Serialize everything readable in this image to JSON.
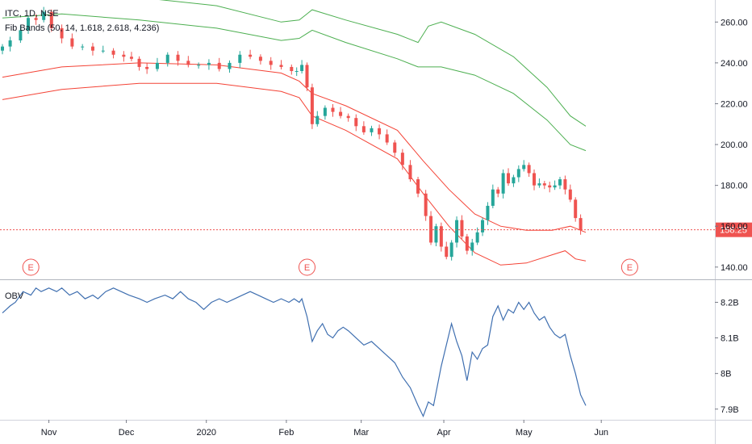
{
  "header": {
    "symbol_line": "ITC, 1D, NSE",
    "indicator_line": "Fib Bands (50, 14, 1.618, 2.618, 4.236)"
  },
  "colors": {
    "up": "#26a69a",
    "down": "#ef5350",
    "upper_band": "#4caf50",
    "lower_band": "#f44336",
    "obv": "#3f6fb0",
    "last_price": "#ef5350"
  },
  "chart_data": [
    {
      "type": "candlestick",
      "title": "ITC, 1D, NSE",
      "x_axis": {
        "tick_labels": [
          "Nov",
          "Dec",
          "2020",
          "Feb",
          "Mar",
          "Apr",
          "May",
          "Jun"
        ],
        "tick_day_index": [
          25,
          55,
          86,
          117,
          146,
          178,
          209,
          239
        ]
      },
      "y_axis": {
        "range": [
          134,
          270
        ],
        "ticks": [
          140,
          160,
          180,
          200,
          220,
          240,
          260
        ],
        "tick_labels": [
          "140.00",
          "160.00",
          "180.00",
          "200.00",
          "220.00",
          "240.00",
          "260.00"
        ]
      },
      "last_price": {
        "value": 158.25,
        "label": "158.25"
      },
      "earnings_markers": {
        "label": "E",
        "day_index": [
          18,
          125,
          250
        ]
      },
      "close_series": [
        {
          "d": 7,
          "c": 248
        },
        {
          "d": 10,
          "c": 251
        },
        {
          "d": 14,
          "c": 256
        },
        {
          "d": 17,
          "c": 262
        },
        {
          "d": 20,
          "c": 261
        },
        {
          "d": 23,
          "c": 265
        },
        {
          "d": 26,
          "c": 257
        },
        {
          "d": 30,
          "c": 252
        },
        {
          "d": 34,
          "c": 248
        },
        {
          "d": 38,
          "c": 248
        },
        {
          "d": 42,
          "c": 246
        },
        {
          "d": 46,
          "c": 246
        },
        {
          "d": 50,
          "c": 244
        },
        {
          "d": 54,
          "c": 243
        },
        {
          "d": 57,
          "c": 242
        },
        {
          "d": 60,
          "c": 238
        },
        {
          "d": 63,
          "c": 237
        },
        {
          "d": 67,
          "c": 240
        },
        {
          "d": 71,
          "c": 244
        },
        {
          "d": 75,
          "c": 241
        },
        {
          "d": 79,
          "c": 239
        },
        {
          "d": 83,
          "c": 239
        },
        {
          "d": 87,
          "c": 240
        },
        {
          "d": 91,
          "c": 237
        },
        {
          "d": 95,
          "c": 240
        },
        {
          "d": 99,
          "c": 244
        },
        {
          "d": 103,
          "c": 243
        },
        {
          "d": 107,
          "c": 241
        },
        {
          "d": 111,
          "c": 239
        },
        {
          "d": 115,
          "c": 238
        },
        {
          "d": 119,
          "c": 236
        },
        {
          "d": 121,
          "c": 236
        },
        {
          "d": 123,
          "c": 239
        },
        {
          "d": 125,
          "c": 228
        },
        {
          "d": 127,
          "c": 210
        },
        {
          "d": 129,
          "c": 214
        },
        {
          "d": 132,
          "c": 218
        },
        {
          "d": 135,
          "c": 216
        },
        {
          "d": 138,
          "c": 214
        },
        {
          "d": 141,
          "c": 213
        },
        {
          "d": 144,
          "c": 209
        },
        {
          "d": 147,
          "c": 206
        },
        {
          "d": 150,
          "c": 208
        },
        {
          "d": 153,
          "c": 205
        },
        {
          "d": 156,
          "c": 201
        },
        {
          "d": 159,
          "c": 196
        },
        {
          "d": 162,
          "c": 190
        },
        {
          "d": 165,
          "c": 183
        },
        {
          "d": 168,
          "c": 176
        },
        {
          "d": 171,
          "c": 165
        },
        {
          "d": 173,
          "c": 152
        },
        {
          "d": 175,
          "c": 160
        },
        {
          "d": 177,
          "c": 150
        },
        {
          "d": 179,
          "c": 145
        },
        {
          "d": 181,
          "c": 152
        },
        {
          "d": 183,
          "c": 163
        },
        {
          "d": 185,
          "c": 155
        },
        {
          "d": 187,
          "c": 148
        },
        {
          "d": 189,
          "c": 152
        },
        {
          "d": 191,
          "c": 157
        },
        {
          "d": 193,
          "c": 163
        },
        {
          "d": 195,
          "c": 170
        },
        {
          "d": 197,
          "c": 178
        },
        {
          "d": 199,
          "c": 176
        },
        {
          "d": 201,
          "c": 186
        },
        {
          "d": 203,
          "c": 181
        },
        {
          "d": 205,
          "c": 184
        },
        {
          "d": 207,
          "c": 188
        },
        {
          "d": 209,
          "c": 190
        },
        {
          "d": 211,
          "c": 186
        },
        {
          "d": 213,
          "c": 180
        },
        {
          "d": 215,
          "c": 181
        },
        {
          "d": 217,
          "c": 180
        },
        {
          "d": 219,
          "c": 179
        },
        {
          "d": 221,
          "c": 180
        },
        {
          "d": 223,
          "c": 183
        },
        {
          "d": 225,
          "c": 178
        },
        {
          "d": 227,
          "c": 173
        },
        {
          "d": 229,
          "c": 164
        },
        {
          "d": 231,
          "c": 158.25
        }
      ],
      "series": [
        {
          "name": "upper-band-2",
          "color": "#4caf50",
          "points": [
            {
              "d": 7,
              "v": 274
            },
            {
              "d": 30,
              "v": 276
            },
            {
              "d": 60,
              "v": 272
            },
            {
              "d": 90,
              "v": 268
            },
            {
              "d": 115,
              "v": 260
            },
            {
              "d": 122,
              "v": 261
            },
            {
              "d": 127,
              "v": 266
            },
            {
              "d": 140,
              "v": 261
            },
            {
              "d": 160,
              "v": 254
            },
            {
              "d": 168,
              "v": 250
            },
            {
              "d": 172,
              "v": 258
            },
            {
              "d": 177,
              "v": 260
            },
            {
              "d": 190,
              "v": 254
            },
            {
              "d": 205,
              "v": 243
            },
            {
              "d": 218,
              "v": 228
            },
            {
              "d": 227,
              "v": 214
            },
            {
              "d": 233,
              "v": 209
            }
          ]
        },
        {
          "name": "upper-band-1",
          "color": "#4caf50",
          "points": [
            {
              "d": 7,
              "v": 262
            },
            {
              "d": 30,
              "v": 264
            },
            {
              "d": 60,
              "v": 261
            },
            {
              "d": 90,
              "v": 257
            },
            {
              "d": 115,
              "v": 251
            },
            {
              "d": 122,
              "v": 252
            },
            {
              "d": 127,
              "v": 256
            },
            {
              "d": 140,
              "v": 250
            },
            {
              "d": 160,
              "v": 242
            },
            {
              "d": 168,
              "v": 238
            },
            {
              "d": 177,
              "v": 238
            },
            {
              "d": 190,
              "v": 234
            },
            {
              "d": 205,
              "v": 225
            },
            {
              "d": 218,
              "v": 212
            },
            {
              "d": 227,
              "v": 200
            },
            {
              "d": 233,
              "v": 197
            }
          ]
        },
        {
          "name": "lower-band-1",
          "color": "#f44336",
          "points": [
            {
              "d": 7,
              "v": 233
            },
            {
              "d": 30,
              "v": 238
            },
            {
              "d": 60,
              "v": 240
            },
            {
              "d": 90,
              "v": 239
            },
            {
              "d": 115,
              "v": 235
            },
            {
              "d": 122,
              "v": 231
            },
            {
              "d": 127,
              "v": 225
            },
            {
              "d": 140,
              "v": 219
            },
            {
              "d": 160,
              "v": 207
            },
            {
              "d": 170,
              "v": 192
            },
            {
              "d": 180,
              "v": 178
            },
            {
              "d": 190,
              "v": 166
            },
            {
              "d": 200,
              "v": 160
            },
            {
              "d": 210,
              "v": 158
            },
            {
              "d": 220,
              "v": 158
            },
            {
              "d": 227,
              "v": 160
            },
            {
              "d": 233,
              "v": 157
            }
          ]
        },
        {
          "name": "lower-band-2",
          "color": "#f44336",
          "points": [
            {
              "d": 7,
              "v": 222
            },
            {
              "d": 30,
              "v": 227
            },
            {
              "d": 60,
              "v": 230
            },
            {
              "d": 90,
              "v": 230
            },
            {
              "d": 115,
              "v": 226
            },
            {
              "d": 122,
              "v": 223
            },
            {
              "d": 127,
              "v": 214
            },
            {
              "d": 140,
              "v": 207
            },
            {
              "d": 160,
              "v": 193
            },
            {
              "d": 170,
              "v": 176
            },
            {
              "d": 180,
              "v": 160
            },
            {
              "d": 190,
              "v": 147
            },
            {
              "d": 200,
              "v": 141
            },
            {
              "d": 210,
              "v": 142
            },
            {
              "d": 220,
              "v": 146
            },
            {
              "d": 225,
              "v": 148
            },
            {
              "d": 229,
              "v": 144
            },
            {
              "d": 233,
              "v": 143
            }
          ]
        }
      ]
    },
    {
      "type": "line",
      "title": "OBV",
      "y_axis": {
        "range": [
          7.87,
          8.26
        ],
        "ticks": [
          7.9,
          8.0,
          8.1,
          8.2
        ],
        "tick_labels": [
          "7.9B",
          "8B",
          "8.1B",
          "8.2B"
        ]
      },
      "series": [
        {
          "name": "OBV",
          "color": "#3f6fb0",
          "points": [
            {
              "d": 7,
              "v": 8.17
            },
            {
              "d": 10,
              "v": 8.19
            },
            {
              "d": 12,
              "v": 8.2
            },
            {
              "d": 15,
              "v": 8.23
            },
            {
              "d": 18,
              "v": 8.22
            },
            {
              "d": 20,
              "v": 8.24
            },
            {
              "d": 22,
              "v": 8.23
            },
            {
              "d": 25,
              "v": 8.24
            },
            {
              "d": 28,
              "v": 8.23
            },
            {
              "d": 30,
              "v": 8.24
            },
            {
              "d": 33,
              "v": 8.22
            },
            {
              "d": 36,
              "v": 8.23
            },
            {
              "d": 39,
              "v": 8.21
            },
            {
              "d": 42,
              "v": 8.22
            },
            {
              "d": 44,
              "v": 8.21
            },
            {
              "d": 47,
              "v": 8.23
            },
            {
              "d": 50,
              "v": 8.24
            },
            {
              "d": 53,
              "v": 8.23
            },
            {
              "d": 56,
              "v": 8.22
            },
            {
              "d": 60,
              "v": 8.21
            },
            {
              "d": 63,
              "v": 8.2
            },
            {
              "d": 66,
              "v": 8.21
            },
            {
              "d": 70,
              "v": 8.22
            },
            {
              "d": 73,
              "v": 8.21
            },
            {
              "d": 76,
              "v": 8.23
            },
            {
              "d": 79,
              "v": 8.21
            },
            {
              "d": 82,
              "v": 8.2
            },
            {
              "d": 85,
              "v": 8.18
            },
            {
              "d": 88,
              "v": 8.2
            },
            {
              "d": 91,
              "v": 8.21
            },
            {
              "d": 94,
              "v": 8.2
            },
            {
              "d": 97,
              "v": 8.21
            },
            {
              "d": 100,
              "v": 8.22
            },
            {
              "d": 103,
              "v": 8.23
            },
            {
              "d": 106,
              "v": 8.22
            },
            {
              "d": 109,
              "v": 8.21
            },
            {
              "d": 112,
              "v": 8.2
            },
            {
              "d": 115,
              "v": 8.21
            },
            {
              "d": 118,
              "v": 8.2
            },
            {
              "d": 120,
              "v": 8.21
            },
            {
              "d": 122,
              "v": 8.2
            },
            {
              "d": 123,
              "v": 8.21
            },
            {
              "d": 125,
              "v": 8.16
            },
            {
              "d": 127,
              "v": 8.09
            },
            {
              "d": 129,
              "v": 8.12
            },
            {
              "d": 131,
              "v": 8.14
            },
            {
              "d": 133,
              "v": 8.11
            },
            {
              "d": 135,
              "v": 8.1
            },
            {
              "d": 137,
              "v": 8.12
            },
            {
              "d": 139,
              "v": 8.13
            },
            {
              "d": 141,
              "v": 8.12
            },
            {
              "d": 144,
              "v": 8.1
            },
            {
              "d": 147,
              "v": 8.08
            },
            {
              "d": 150,
              "v": 8.09
            },
            {
              "d": 153,
              "v": 8.07
            },
            {
              "d": 156,
              "v": 8.05
            },
            {
              "d": 159,
              "v": 8.03
            },
            {
              "d": 162,
              "v": 7.99
            },
            {
              "d": 165,
              "v": 7.96
            },
            {
              "d": 168,
              "v": 7.91
            },
            {
              "d": 170,
              "v": 7.88
            },
            {
              "d": 172,
              "v": 7.92
            },
            {
              "d": 174,
              "v": 7.91
            },
            {
              "d": 177,
              "v": 8.02
            },
            {
              "d": 181,
              "v": 8.14
            },
            {
              "d": 183,
              "v": 8.09
            },
            {
              "d": 185,
              "v": 8.05
            },
            {
              "d": 187,
              "v": 7.98
            },
            {
              "d": 189,
              "v": 8.06
            },
            {
              "d": 191,
              "v": 8.04
            },
            {
              "d": 193,
              "v": 8.07
            },
            {
              "d": 195,
              "v": 8.08
            },
            {
              "d": 197,
              "v": 8.16
            },
            {
              "d": 199,
              "v": 8.19
            },
            {
              "d": 201,
              "v": 8.15
            },
            {
              "d": 203,
              "v": 8.18
            },
            {
              "d": 205,
              "v": 8.17
            },
            {
              "d": 207,
              "v": 8.2
            },
            {
              "d": 209,
              "v": 8.18
            },
            {
              "d": 211,
              "v": 8.2
            },
            {
              "d": 213,
              "v": 8.17
            },
            {
              "d": 215,
              "v": 8.15
            },
            {
              "d": 217,
              "v": 8.16
            },
            {
              "d": 219,
              "v": 8.13
            },
            {
              "d": 221,
              "v": 8.11
            },
            {
              "d": 223,
              "v": 8.1
            },
            {
              "d": 225,
              "v": 8.11
            },
            {
              "d": 227,
              "v": 8.05
            },
            {
              "d": 229,
              "v": 8.0
            },
            {
              "d": 231,
              "v": 7.94
            },
            {
              "d": 233,
              "v": 7.91
            }
          ]
        }
      ]
    }
  ]
}
